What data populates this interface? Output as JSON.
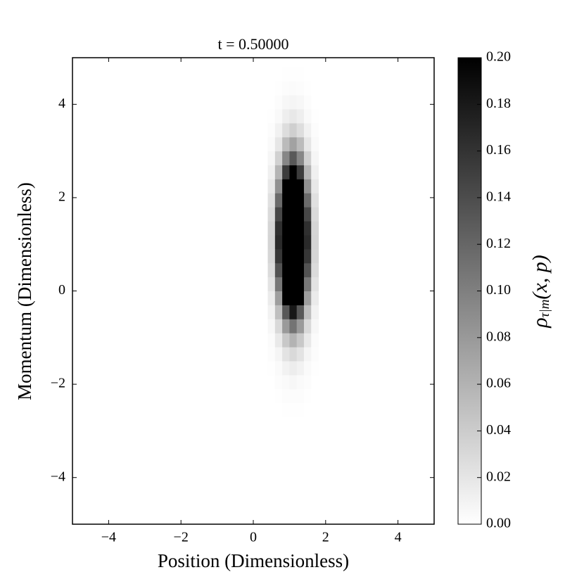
{
  "chart_data": {
    "type": "heatmap",
    "title": "t = 0.50000",
    "x_label": "Position (Dimensionless)",
    "y_label": "Momentum (Dimensionless)",
    "colorbar_label": {
      "base": "ρ",
      "sub": "τ|m",
      "rest": "(x, p)"
    },
    "xlim": [
      -5,
      5
    ],
    "ylim": [
      -5,
      5
    ],
    "xticks": [
      {
        "value": -4,
        "label": "−4"
      },
      {
        "value": -2,
        "label": "−2"
      },
      0,
      2,
      4
    ],
    "yticks": [
      {
        "value": -4,
        "label": "−4"
      },
      {
        "value": -2,
        "label": "−2"
      },
      0,
      2,
      4
    ],
    "x": [
      0.4,
      0.6,
      0.8,
      1.0,
      1.2,
      1.4,
      1.6,
      1.8
    ],
    "y": [
      -2.7,
      -2.4,
      -2.1,
      -1.8,
      -1.5,
      -1.2,
      -0.9,
      -0.6,
      -0.3,
      0.0,
      0.3,
      0.6,
      0.9,
      1.2,
      1.5,
      1.8,
      2.1,
      2.4,
      2.7,
      3.0,
      3.3,
      3.6,
      3.9,
      4.2,
      4.5,
      4.8
    ],
    "z": [
      [
        0,
        0,
        0.001,
        0.001,
        0.001,
        0,
        0
      ],
      [
        0,
        0.001,
        0.002,
        0.002,
        0.002,
        0.001,
        0
      ],
      [
        0,
        0.002,
        0.004,
        0.006,
        0.004,
        0.002,
        0
      ],
      [
        0.001,
        0.004,
        0.01,
        0.014,
        0.01,
        0.004,
        0.001
      ],
      [
        0.002,
        0.008,
        0.022,
        0.03,
        0.022,
        0.008,
        0.002
      ],
      [
        0.003,
        0.017,
        0.043,
        0.06,
        0.043,
        0.017,
        0.003
      ],
      [
        0.006,
        0.03,
        0.079,
        0.109,
        0.079,
        0.03,
        0.006
      ],
      [
        0.01,
        0.05,
        0.131,
        0.181,
        0.131,
        0.05,
        0.01
      ],
      [
        0.016,
        0.076,
        0.2,
        0.275,
        0.2,
        0.076,
        0.016
      ],
      [
        0.022,
        0.106,
        0.278,
        0.382,
        0.278,
        0.106,
        0.022
      ],
      [
        0.028,
        0.135,
        0.353,
        0.486,
        0.353,
        0.135,
        0.028
      ],
      [
        0.032,
        0.157,
        0.41,
        0.565,
        0.41,
        0.157,
        0.032
      ],
      [
        0.034,
        0.167,
        0.436,
        0.599,
        0.436,
        0.167,
        0.034
      ],
      [
        0.033,
        0.162,
        0.422,
        0.581,
        0.422,
        0.162,
        0.033
      ],
      [
        0.029,
        0.144,
        0.375,
        0.516,
        0.375,
        0.144,
        0.029
      ],
      [
        0.024,
        0.116,
        0.304,
        0.418,
        0.304,
        0.116,
        0.024
      ],
      [
        0.018,
        0.086,
        0.225,
        0.31,
        0.225,
        0.086,
        0.018
      ],
      [
        0.012,
        0.058,
        0.153,
        0.21,
        0.153,
        0.058,
        0.012
      ],
      [
        0.007,
        0.036,
        0.094,
        0.13,
        0.094,
        0.036,
        0.007
      ],
      [
        0.004,
        0.02,
        0.053,
        0.073,
        0.053,
        0.02,
        0.004
      ],
      [
        0.002,
        0.011,
        0.027,
        0.038,
        0.027,
        0.011,
        0.002
      ],
      [
        0.001,
        0.005,
        0.013,
        0.018,
        0.013,
        0.005,
        0.001
      ],
      [
        0,
        0.002,
        0.006,
        0.008,
        0.006,
        0.002,
        0
      ],
      [
        0,
        0.001,
        0.002,
        0.003,
        0.002,
        0.001,
        0
      ],
      [
        0,
        0,
        0.001,
        0.001,
        0.001,
        0,
        0
      ]
    ],
    "clim": [
      0,
      0.2
    ],
    "cticks": [
      {
        "value": 0,
        "label": "0.00"
      },
      {
        "value": 0.02,
        "label": "0.02"
      },
      {
        "value": 0.04,
        "label": "0.04"
      },
      {
        "value": 0.06,
        "label": "0.06"
      },
      {
        "value": 0.08,
        "label": "0.08"
      },
      {
        "value": 0.1,
        "label": "0.10"
      },
      {
        "value": 0.12,
        "label": "0.12"
      },
      {
        "value": 0.14,
        "label": "0.14"
      },
      {
        "value": 0.16,
        "label": "0.16"
      },
      {
        "value": 0.18,
        "label": "0.18"
      },
      {
        "value": 0.2,
        "label": "0.20"
      }
    ],
    "colormap": "gray_r"
  }
}
